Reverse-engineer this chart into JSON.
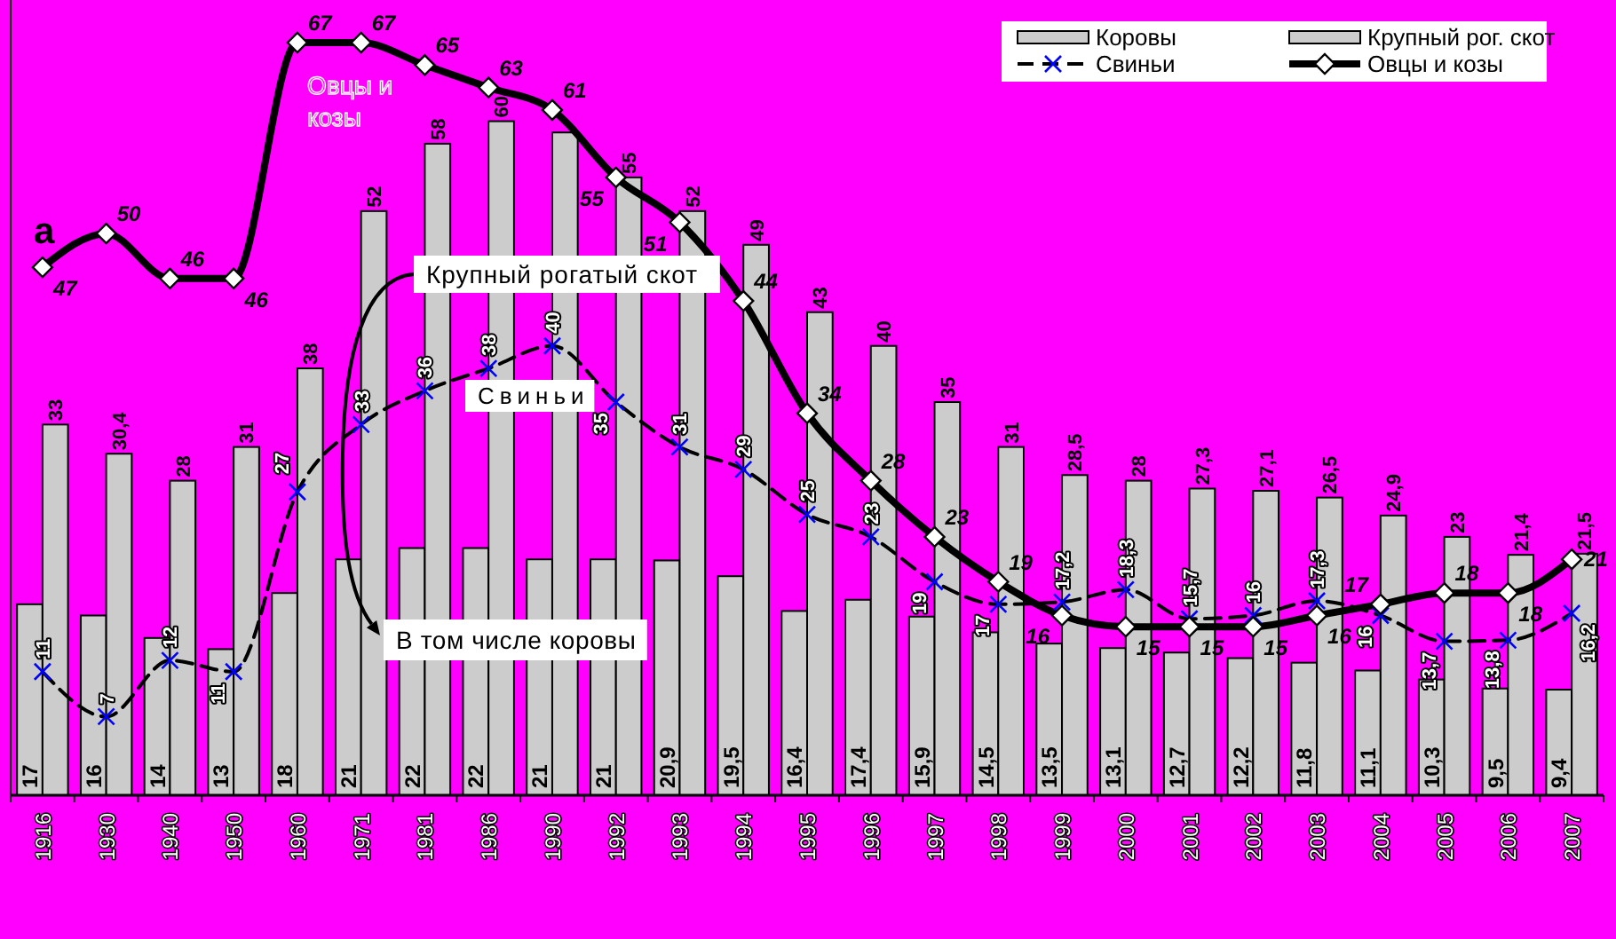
{
  "chart_data": {
    "type": "bar",
    "categories": [
      "1916",
      "1930",
      "1940",
      "1950",
      "1960",
      "1971",
      "1981",
      "1986",
      "1990",
      "1992",
      "1993",
      "1994",
      "1995",
      "1996",
      "1997",
      "1998",
      "1999",
      "2000",
      "2001",
      "2002",
      "2003",
      "2004",
      "2005",
      "2006",
      "2007"
    ],
    "tick_labels": "x",
    "legend": "top right",
    "annotations": [
      "а",
      "Овцы и козы",
      "Крупный рогатый скот",
      "Свиньи",
      "В том числе коровы"
    ],
    "series": [
      {
        "name": "Коровы",
        "color": "#cccccc",
        "values": [
          17,
          16,
          14,
          13,
          18,
          21,
          22,
          22,
          21,
          21,
          20.9,
          19.5,
          16.4,
          17.4,
          15.9,
          14.5,
          13.5,
          13.1,
          12.7,
          12.2,
          11.8,
          11.1,
          10.3,
          9.5,
          9.4
        ],
        "value_labels": [
          "17",
          "16",
          "14",
          "13",
          "18",
          "21",
          "22",
          "22",
          "21",
          "21",
          "20,9",
          "19,5",
          "16,4",
          "17,4",
          "15,9",
          "14,5",
          "13,5",
          "13,1",
          "12,7",
          "12,2",
          "11,8",
          "11,1",
          "10,3",
          "9,5",
          "9,4"
        ]
      },
      {
        "name": "Крупный рог. скот",
        "color": "#cccccc",
        "values": [
          33,
          30.4,
          28,
          31,
          38,
          52,
          58,
          60,
          59,
          55,
          52,
          49,
          43,
          40,
          35,
          31,
          28.5,
          28,
          27.3,
          27.1,
          26.5,
          24.9,
          23,
          21.4,
          21.5
        ],
        "value_labels": [
          "33",
          "30,4",
          "28",
          "31",
          "38",
          "52",
          "58",
          "60",
          null,
          "55",
          "52",
          "49",
          "43",
          "40",
          "35",
          "31",
          "28,5",
          "28",
          "27,3",
          "27,1",
          "26,5",
          "24,9",
          "23",
          "21,4",
          "21,5"
        ]
      },
      {
        "name": "Свиньи",
        "type": "line",
        "color": "#000000",
        "line_style": "dashed",
        "marker": "cross",
        "values": [
          11,
          7,
          12,
          11,
          27,
          33,
          36,
          38,
          40,
          35,
          31,
          29,
          25,
          23,
          19,
          17,
          17.2,
          18.3,
          15.7,
          16,
          17.3,
          16,
          13.7,
          13.8,
          16.2
        ],
        "value_labels": [
          "11",
          "7",
          "12",
          "11",
          "27",
          "33",
          "36",
          "38",
          "40",
          "35",
          "31",
          "29",
          "25",
          "23",
          "19",
          "17",
          "17,2",
          "18,3",
          "15,7",
          "16",
          "17,3",
          "16",
          "13,7",
          "13,8",
          "16,2"
        ]
      },
      {
        "name": "Овцы и козы",
        "type": "line",
        "color": "#000000",
        "line_style": "solid",
        "marker": "diamond",
        "values": [
          47,
          50,
          46,
          46,
          67,
          67,
          65,
          63,
          61,
          55,
          51,
          44,
          34,
          28,
          23,
          19,
          16,
          15,
          15,
          15,
          16,
          17,
          18,
          18,
          21
        ],
        "value_labels": [
          "47",
          "50",
          "46",
          "46",
          "67",
          "67",
          "65",
          "63",
          "61",
          "55",
          "51",
          "44",
          "34",
          "28",
          "23",
          "19",
          "16",
          "15",
          "15",
          "15",
          "16",
          "17",
          "18",
          "18",
          "21"
        ]
      }
    ]
  }
}
